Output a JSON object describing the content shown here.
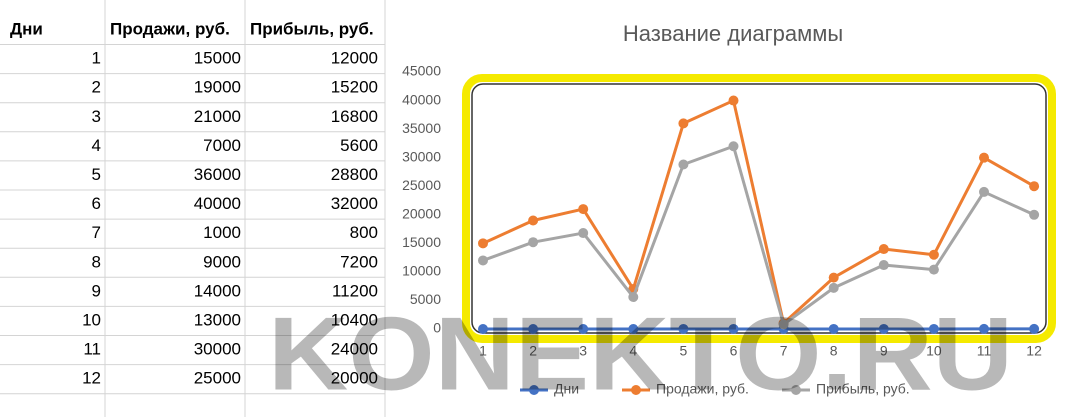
{
  "table": {
    "header": [
      "Дни",
      "Продажи, руб.",
      "Прибыль, руб."
    ],
    "rows": [
      [
        "1",
        "15000",
        "12000"
      ],
      [
        "2",
        "19000",
        "15200"
      ],
      [
        "3",
        "21000",
        "16800"
      ],
      [
        "4",
        "7000",
        "5600"
      ],
      [
        "5",
        "36000",
        "28800"
      ],
      [
        "6",
        "40000",
        "32000"
      ],
      [
        "7",
        "1000",
        "800"
      ],
      [
        "8",
        "9000",
        "7200"
      ],
      [
        "9",
        "14000",
        "11200"
      ],
      [
        "10",
        "13000",
        "10400"
      ],
      [
        "11",
        "30000",
        "24000"
      ],
      [
        "12",
        "25000",
        "20000"
      ]
    ]
  },
  "chart_data": {
    "type": "line",
    "title": "Название диаграммы",
    "categories": [
      "1",
      "2",
      "3",
      "4",
      "5",
      "6",
      "7",
      "8",
      "9",
      "10",
      "11",
      "12"
    ],
    "series": [
      {
        "name": "Дни",
        "color": "#4472c4",
        "values": [
          1,
          2,
          3,
          4,
          5,
          6,
          7,
          8,
          9,
          10,
          11,
          12
        ]
      },
      {
        "name": "Продажи, руб.",
        "color": "#ed7d31",
        "values": [
          15000,
          19000,
          21000,
          7000,
          36000,
          40000,
          1000,
          9000,
          14000,
          13000,
          30000,
          25000
        ]
      },
      {
        "name": "Прибыль, руб.",
        "color": "#a5a5a5",
        "values": [
          12000,
          15200,
          16800,
          5600,
          28800,
          32000,
          800,
          7200,
          11200,
          10400,
          24000,
          20000
        ]
      }
    ],
    "ylim": [
      0,
      45000
    ],
    "yticks": [
      0,
      5000,
      10000,
      15000,
      20000,
      25000,
      30000,
      35000,
      40000,
      45000
    ],
    "grid": false,
    "legend": "bottom"
  },
  "watermark": "KONEKTO.RU"
}
